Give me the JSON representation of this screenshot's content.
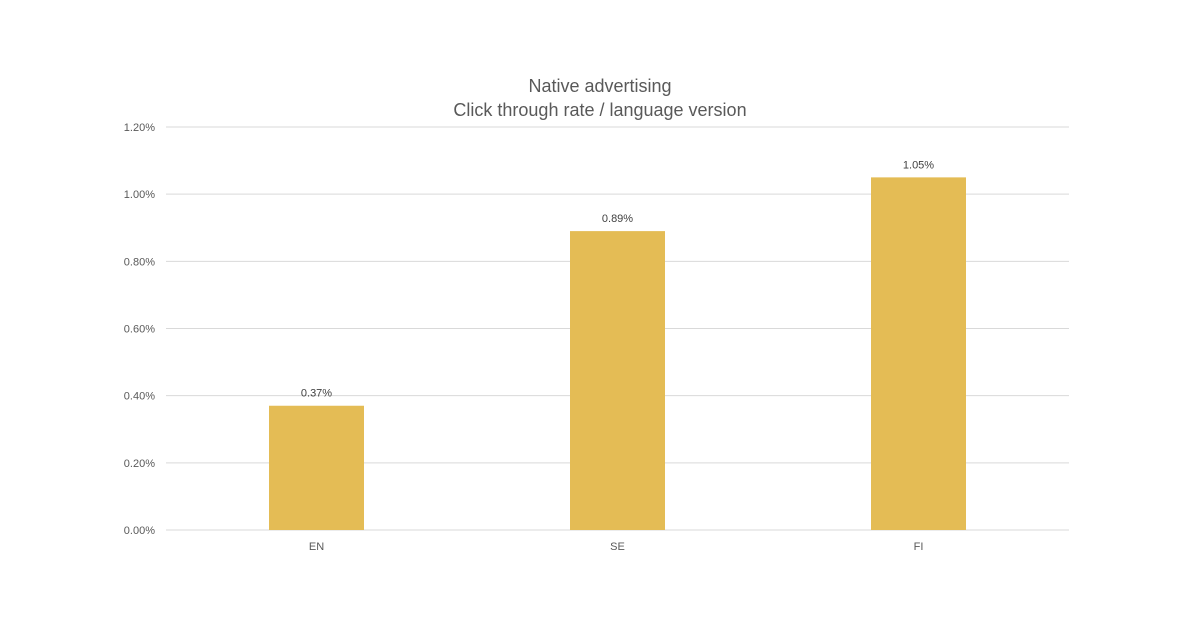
{
  "chart_data": {
    "type": "bar",
    "title": "Native advertising",
    "subtitle": "Click through rate / language version",
    "categories": [
      "EN",
      "SE",
      "FI"
    ],
    "values": [
      0.37,
      0.89,
      1.05
    ],
    "data_labels": [
      "0.37%",
      "0.89%",
      "1.05%"
    ],
    "y_ticks": [
      0,
      0.2,
      0.4,
      0.6,
      0.8,
      1.0,
      1.2
    ],
    "y_tick_labels": [
      "0.00%",
      "0.20%",
      "0.40%",
      "0.60%",
      "0.80%",
      "1.00%",
      "1.20%"
    ],
    "ylim": [
      0,
      1.2
    ],
    "grid": true,
    "legend": "none",
    "colors": {
      "bar": "#E4BC55",
      "grid": "#D9D9D9",
      "text": "#595959"
    }
  }
}
